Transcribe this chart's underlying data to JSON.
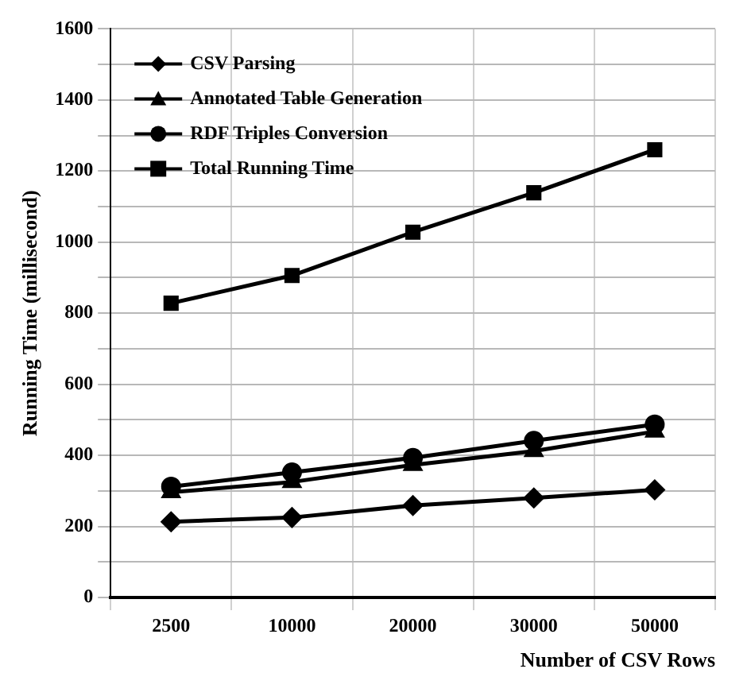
{
  "chart_data": {
    "type": "line",
    "ylabel": "Running Time (millisecond)",
    "xlabel": "Number of CSV Rows",
    "categories": [
      "2500",
      "10000",
      "20000",
      "30000",
      "50000"
    ],
    "series": [
      {
        "name": "CSV Parsing",
        "color": "#000000",
        "marker": "diamond",
        "values": [
          213,
          225,
          259,
          280,
          303
        ]
      },
      {
        "name": "Annotated Table Generation",
        "color": "#000000",
        "marker": "triangle",
        "values": [
          296,
          325,
          373,
          412,
          467
        ]
      },
      {
        "name": "RDF Triples Conversion",
        "color": "#000000",
        "marker": "circle",
        "values": [
          312,
          352,
          393,
          441,
          487
        ]
      },
      {
        "name": "Total Running Time",
        "color": "#000000",
        "marker": "square",
        "values": [
          828,
          906,
          1028,
          1139,
          1260
        ]
      }
    ],
    "ylim": [
      0,
      1600
    ],
    "yticks": [
      0,
      {
        "value": 100,
        "label": null
      },
      200,
      {
        "value": 300,
        "label": null
      },
      400,
      {
        "value": 500,
        "label": null
      },
      600,
      {
        "value": 700,
        "label": null
      },
      800,
      {
        "value": 900,
        "label": null
      },
      1000,
      {
        "value": 1100,
        "label": null
      },
      1200,
      {
        "value": 1300,
        "label": null
      },
      1400,
      {
        "value": 1500,
        "label": null
      },
      1600
    ],
    "grid": true,
    "legend": "top left",
    "line_style": "solid"
  }
}
